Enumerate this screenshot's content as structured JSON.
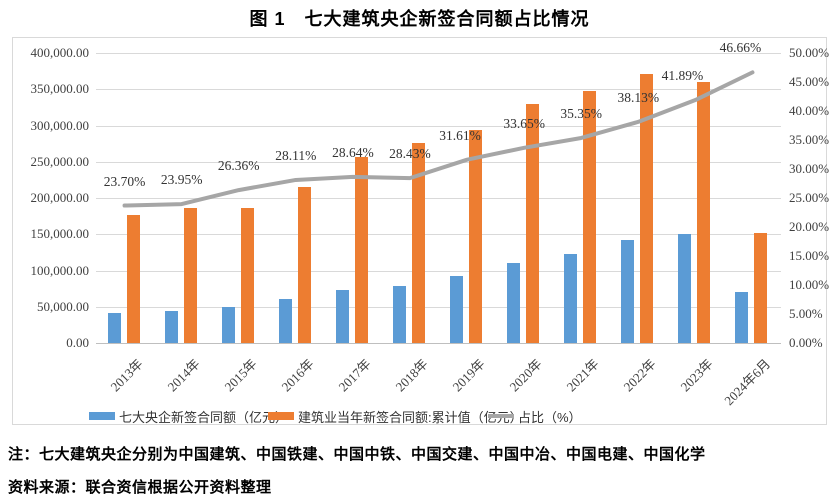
{
  "title": "图 1　七大建筑央企新签合同额占比情况",
  "notes": {
    "note": "注：七大建筑央企分别为中国建筑、中国铁建、中国中铁、中国交建、中国中冶、中国电建、中国化学",
    "source": "资料来源：联合资信根据公开资料整理"
  },
  "chart_data": {
    "type": "bar",
    "subtype": "combo-bar-line-dual-axis",
    "categories": [
      "2013年",
      "2014年",
      "2015年",
      "2016年",
      "2017年",
      "2018年",
      "2019年",
      "2020年",
      "2021年",
      "2022年",
      "2023年",
      "2024年6月"
    ],
    "series": [
      {
        "name": "七大央企新签合同额（亿元）",
        "type": "bar",
        "axis": "left",
        "color": "#5B9BD5",
        "values": [
          41700,
          44500,
          49000,
          60400,
          73300,
          78500,
          92900,
          111000,
          123000,
          141500,
          150800,
          70900
        ]
      },
      {
        "name": "建筑业当年新签合同额:累计值（亿元）",
        "type": "bar",
        "axis": "left",
        "color": "#ED7D31",
        "values": [
          176000,
          186000,
          186000,
          215000,
          256000,
          276000,
          294000,
          330000,
          348000,
          371000,
          360000,
          152000
        ]
      },
      {
        "name": "占比（%）",
        "type": "line",
        "axis": "right",
        "color": "#A6A6A6",
        "values": [
          23.7,
          23.95,
          26.36,
          28.11,
          28.64,
          28.43,
          31.61,
          33.65,
          35.35,
          38.13,
          41.89,
          46.66
        ],
        "point_labels": [
          "23.70%",
          "23.95%",
          "26.36%",
          "28.11%",
          "28.64%",
          "28.43%",
          "31.61%",
          "33.65%",
          "35.35%",
          "38.13%",
          "41.89%",
          "46.66%"
        ]
      }
    ],
    "left_axis": {
      "min": 0,
      "max": 400000,
      "step": 50000,
      "tick_labels": [
        "0.00",
        "50,000.00",
        "100,000.00",
        "150,000.00",
        "200,000.00",
        "250,000.00",
        "300,000.00",
        "350,000.00",
        "400,000.00"
      ]
    },
    "right_axis": {
      "min": 0,
      "max": 50,
      "step": 5,
      "tick_labels": [
        "0.00%",
        "5.00%",
        "10.00%",
        "15.00%",
        "20.00%",
        "25.00%",
        "30.00%",
        "35.00%",
        "40.00%",
        "45.00%",
        "50.00%"
      ]
    },
    "grid": true,
    "legend_position": "bottom",
    "gridline_color": "#D9D9D9",
    "axis_text_color": "#404040"
  }
}
